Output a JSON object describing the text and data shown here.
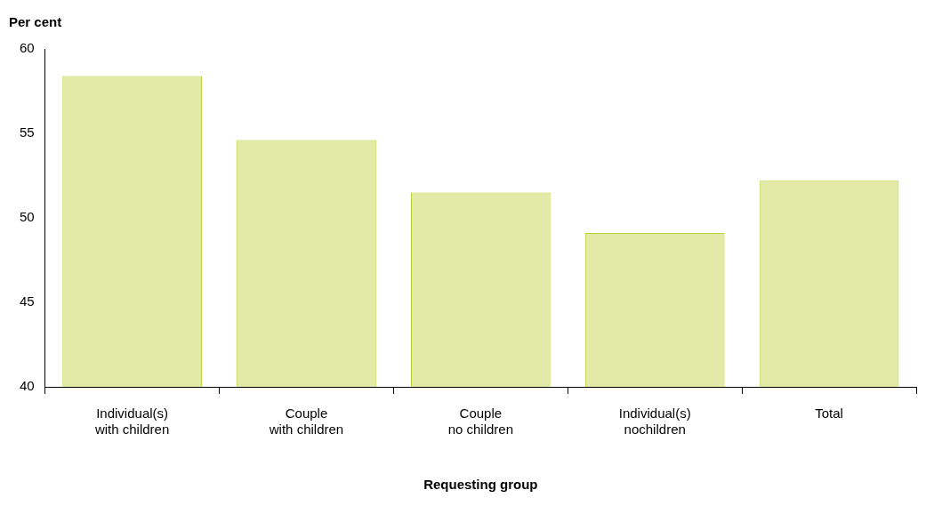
{
  "chart_data": {
    "type": "bar",
    "xlabel": "Requesting group",
    "ylabel": "Per cent",
    "categories": [
      "Individual(s)\nwith children",
      "Couple\nwith children",
      "Couple\nno children",
      "Individual(s)\nnochildren",
      "Total"
    ],
    "values": [
      58.4,
      54.6,
      51.5,
      49.1,
      52.2
    ],
    "color": "#e3eaa8",
    "ylim": [
      40,
      60
    ],
    "yticks": [
      40,
      45,
      50,
      55,
      60
    ],
    "grid": false,
    "legend": false
  }
}
